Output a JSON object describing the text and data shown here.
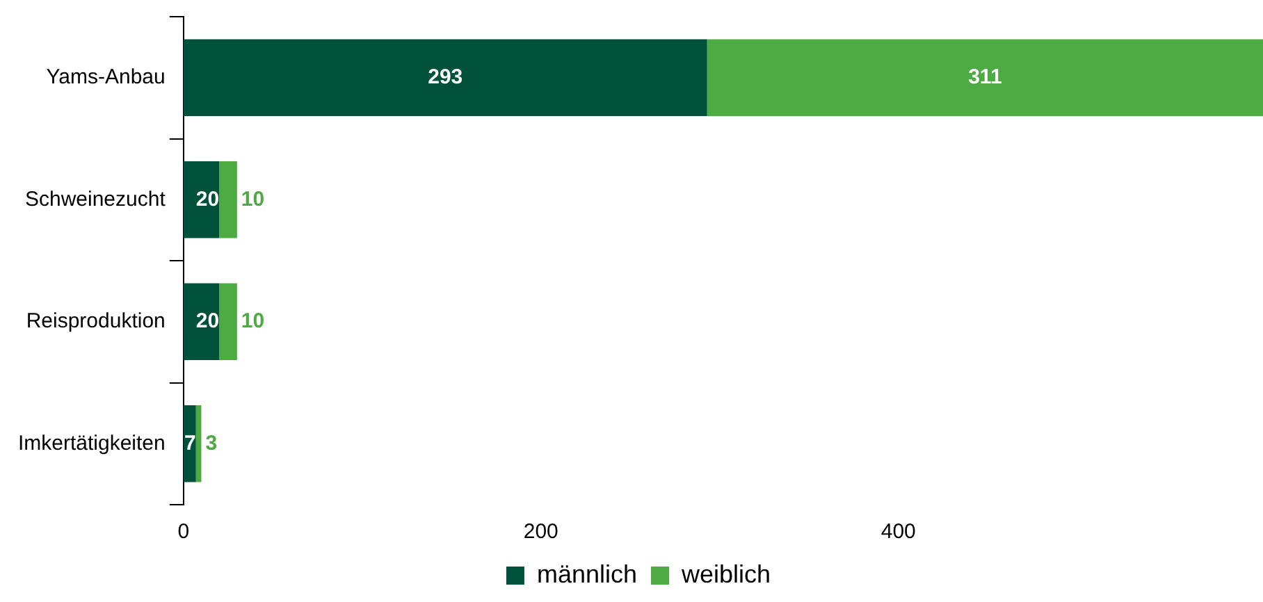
{
  "chart_data": {
    "type": "bar",
    "orientation": "horizontal",
    "stacked": true,
    "categories": [
      "Yams-Anbau",
      "Schweinezucht",
      "Reisproduktion",
      "Imkertätigkeiten"
    ],
    "series": [
      {
        "name": "männlich",
        "color": "#00513a",
        "values": [
          293,
          20,
          20,
          7
        ]
      },
      {
        "name": "weiblich",
        "color": "#4eaa42",
        "values": [
          311,
          10,
          10,
          3
        ]
      }
    ],
    "xlim": [
      0,
      604
    ],
    "xticks": [
      0,
      200,
      400
    ],
    "grid": false,
    "legend": "bottom",
    "data_labels": true
  }
}
